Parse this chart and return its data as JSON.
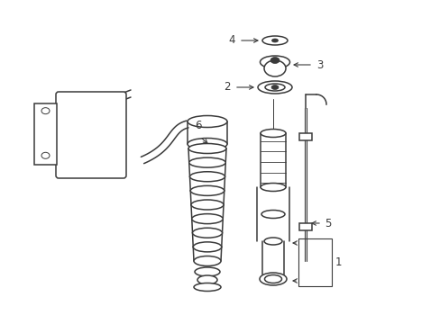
{
  "bg_color": "#ffffff",
  "line_color": "#3a3a3a",
  "label_color": "#111111",
  "figsize": [
    4.89,
    3.6
  ],
  "dpi": 100,
  "xlim": [
    0,
    489
  ],
  "ylim": [
    0,
    360
  ]
}
